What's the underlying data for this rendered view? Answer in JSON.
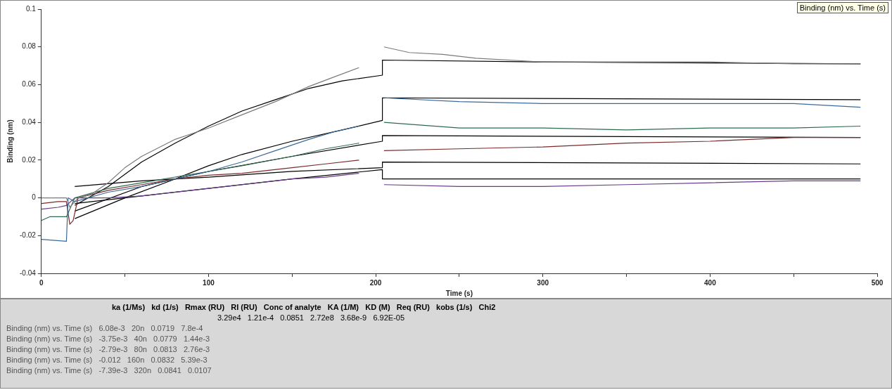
{
  "chart_data": {
    "type": "line",
    "xlabel": "Time (s)",
    "ylabel": "Binding (nm)",
    "xlim": [
      0,
      500
    ],
    "ylim": [
      -0.04,
      0.1
    ],
    "xticks": [
      0,
      {
        "value": 50,
        "label": null
      },
      100,
      {
        "value": 150,
        "label": null
      },
      200,
      {
        "value": 250,
        "label": null
      },
      300,
      {
        "value": 350,
        "label": null
      },
      400,
      {
        "value": 450,
        "label": null
      },
      500
    ],
    "yticks": [
      -0.04,
      -0.02,
      0,
      0.02,
      0.04,
      0.06,
      0.08,
      0.1
    ],
    "grid": false,
    "legend": false,
    "marker": "none",
    "line_style": "solid",
    "series": [
      {
        "color": "#7a7a7a",
        "x": [
          0,
          10,
          15,
          17,
          19,
          22,
          30,
          40,
          50,
          60,
          80,
          100,
          120,
          140,
          160,
          175,
          190,
          197,
          205,
          220,
          240,
          260,
          300,
          350,
          400,
          450,
          490
        ],
        "values": [
          0,
          0,
          0,
          -0.005,
          -0.003,
          0,
          0.002,
          0.008,
          0.016,
          0.022,
          0.031,
          0.037,
          0.044,
          0.051,
          0.059,
          0.064,
          0.069,
          null,
          0.08,
          0.077,
          0.076,
          0.074,
          0.072,
          0.072,
          0.072,
          0.071,
          0.071
        ]
      },
      {
        "color": "#3a6a9a",
        "x": [
          0,
          15,
          16,
          20,
          40,
          60,
          80,
          100,
          120,
          140,
          160,
          175,
          190,
          197,
          205,
          250,
          300,
          350,
          400,
          450,
          490
        ],
        "values": [
          -0.022,
          -0.023,
          0,
          -0.002,
          0.003,
          0.006,
          0.01,
          0.014,
          0.019,
          0.025,
          0.031,
          0.035,
          0.038,
          null,
          0.053,
          0.051,
          0.05,
          0.05,
          0.05,
          0.05,
          0.048
        ]
      },
      {
        "color": "#2e6b4e",
        "x": [
          0,
          5,
          15,
          20,
          40,
          60,
          80,
          100,
          120,
          150,
          170,
          190,
          197,
          205,
          250,
          300,
          350,
          400,
          450,
          490
        ],
        "values": [
          -0.012,
          -0.01,
          -0.01,
          0,
          0.005,
          0.008,
          0.011,
          0.014,
          0.017,
          0.022,
          0.026,
          0.029,
          null,
          0.04,
          0.037,
          0.037,
          0.036,
          0.037,
          0.037,
          0.038
        ]
      },
      {
        "color": "#7a2a2a",
        "x": [
          0,
          10,
          15,
          17,
          19,
          22,
          40,
          60,
          80,
          100,
          120,
          150,
          170,
          190,
          197,
          205,
          250,
          300,
          350,
          400,
          450,
          490
        ],
        "values": [
          -0.003,
          -0.002,
          -0.002,
          -0.014,
          -0.012,
          0,
          0.004,
          0.007,
          0.01,
          0.012,
          0.013,
          0.016,
          0.018,
          0.02,
          null,
          0.025,
          0.026,
          0.027,
          0.029,
          0.03,
          0.032,
          0.032
        ]
      },
      {
        "color": "#6a3a8a",
        "x": [
          0,
          10,
          15,
          20,
          40,
          60,
          80,
          100,
          120,
          150,
          170,
          190,
          197,
          205,
          250,
          300,
          350,
          400,
          450,
          490
        ],
        "values": [
          -0.006,
          -0.005,
          -0.004,
          0,
          0,
          0.001,
          0.003,
          0.005,
          0.007,
          0.01,
          0.011,
          0.013,
          null,
          0.007,
          0.006,
          0.006,
          0.007,
          0.008,
          0.009,
          0.009
        ]
      },
      {
        "color": "#000000",
        "x": [
          20,
          40,
          60,
          80,
          100,
          120,
          140,
          160,
          180,
          204,
          204,
          300,
          490
        ],
        "values": [
          -0.004,
          0.006,
          0.019,
          0.029,
          0.038,
          0.046,
          0.052,
          0.058,
          0.062,
          0.065,
          0.073,
          0.072,
          0.071
        ]
      },
      {
        "color": "#000000",
        "x": [
          20,
          50,
          80,
          100,
          120,
          150,
          180,
          204,
          204,
          490
        ],
        "values": [
          -0.011,
          0,
          0.01,
          0.017,
          0.023,
          0.03,
          0.036,
          0.041,
          0.053,
          0.052
        ]
      },
      {
        "color": "#000000",
        "x": [
          20,
          60,
          100,
          150,
          204,
          204,
          490
        ],
        "values": [
          -0.007,
          0.006,
          0.014,
          0.022,
          0.03,
          0.033,
          0.032
        ]
      },
      {
        "color": "#000000",
        "x": [
          20,
          60,
          100,
          150,
          204,
          204,
          490
        ],
        "values": [
          0.006,
          0.009,
          0.011,
          0.014,
          0.016,
          0.019,
          0.018
        ]
      },
      {
        "color": "#000000",
        "x": [
          20,
          60,
          100,
          150,
          204,
          204,
          490
        ],
        "values": [
          -0.003,
          0.001,
          0.005,
          0.01,
          0.015,
          0.01,
          0.01
        ]
      }
    ],
    "annotations": [
      "Binding (nm) vs. Time (s)",
      "ka (1/Ms)   kd (1/s)   Rmax (RU)   RI (RU)   Conc of analyte   KA (1/M)   KD (M)   Req (RU)   kobs (1/s)   Chi2",
      "3.29e4   1.21e-4   0.0851   2.72e8   3.68e-9   6.92E-05",
      "Binding (nm) vs. Time (s)   6.08e-3   20n   0.0719   7.8e-4",
      "Binding (nm) vs. Time (s)   -3.75e-3   40n   0.0779   1.44e-3",
      "Binding (nm) vs. Time (s)   -2.79e-3   80n   0.0813   2.76e-3",
      "Binding (nm) vs. Time (s)   -0.012   160n   0.0832   5.39e-3",
      "Binding (nm) vs. Time (s)   -7.39e-3   320n   0.0841   0.0107"
    ]
  }
}
